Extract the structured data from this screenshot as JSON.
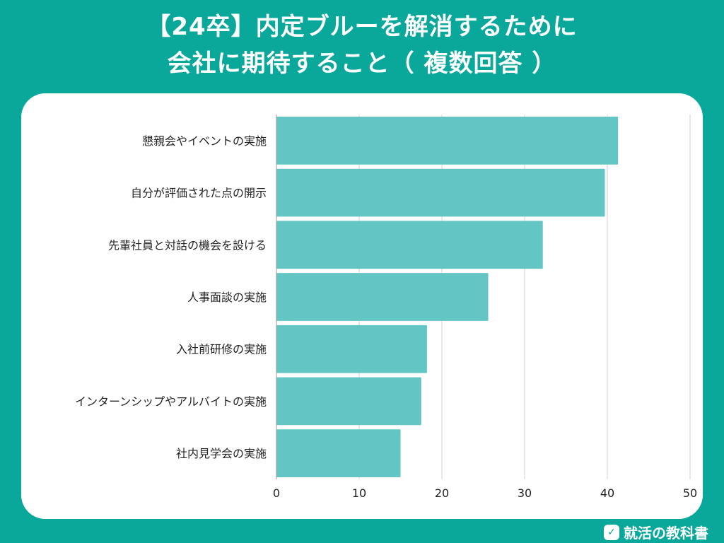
{
  "header": {
    "title_line1": "【24卒】内定ブルーを解消するために",
    "title_line2": "会社に期待すること（ 複数回答 ）"
  },
  "brand": {
    "name": "就活の教科書",
    "icon": "book-check-icon"
  },
  "colors": {
    "background": "#0aa89a",
    "bar": "#64c6c4",
    "grid": "#d0d0d0",
    "text": "#222222"
  },
  "chart_data": {
    "type": "bar",
    "orientation": "horizontal",
    "categories": [
      "懇親会やイベントの実施",
      "自分が評価された点の開示",
      "先輩社員と対話の機会を設ける",
      "人事面談の実施",
      "入社前研修の実施",
      "インターンシップやアルバイトの実施",
      "社内見学会の実施"
    ],
    "values": [
      41.3,
      39.7,
      32.2,
      25.6,
      18.2,
      17.5,
      15.0
    ],
    "xlim": [
      0,
      50
    ],
    "xticks": [
      "0",
      "10",
      "20",
      "30",
      "40",
      "50"
    ],
    "grid": true
  }
}
